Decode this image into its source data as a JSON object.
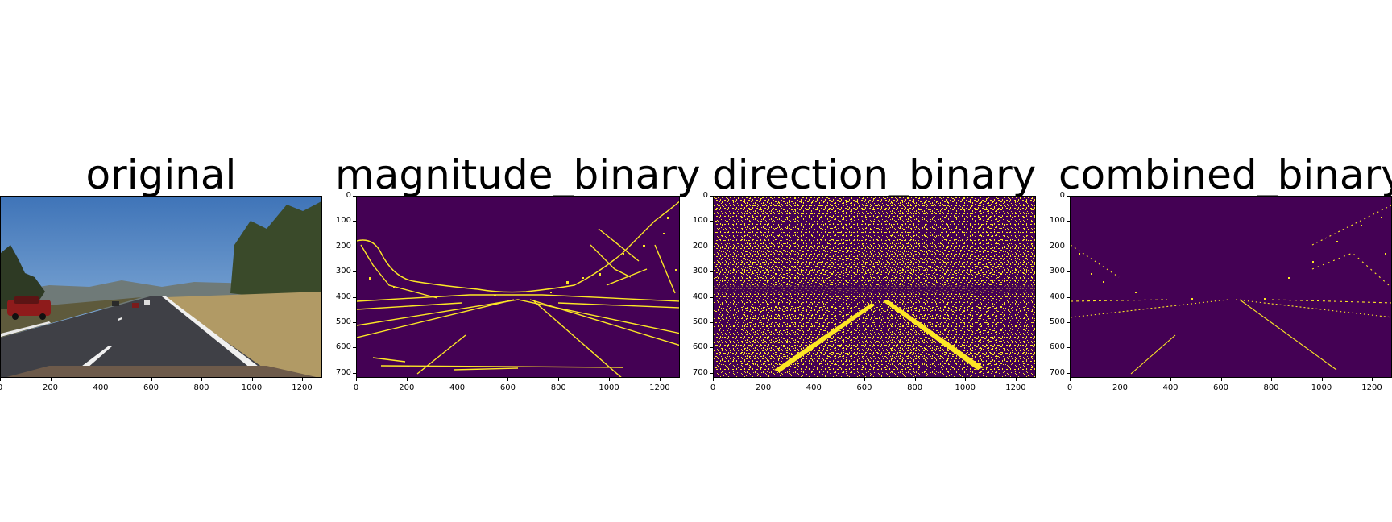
{
  "figure": {
    "panels": [
      {
        "title": "original",
        "content": "road-photo"
      },
      {
        "title": "magnitude_binary",
        "content": "binary-mask"
      },
      {
        "title": "direction_binary",
        "content": "binary-mask"
      },
      {
        "title": "combined_binary",
        "content": "binary-mask"
      }
    ],
    "x_ticks": [
      "0",
      "200",
      "400",
      "600",
      "800",
      "1000",
      "1200"
    ],
    "y_ticks": [
      "0",
      "100",
      "200",
      "300",
      "400",
      "500",
      "600",
      "700"
    ],
    "colors": {
      "mask_background": "#440154",
      "mask_foreground": "#fde725",
      "sky": "#5a8ac8",
      "road": "#3f4046",
      "grass": "#b8a06a"
    }
  }
}
